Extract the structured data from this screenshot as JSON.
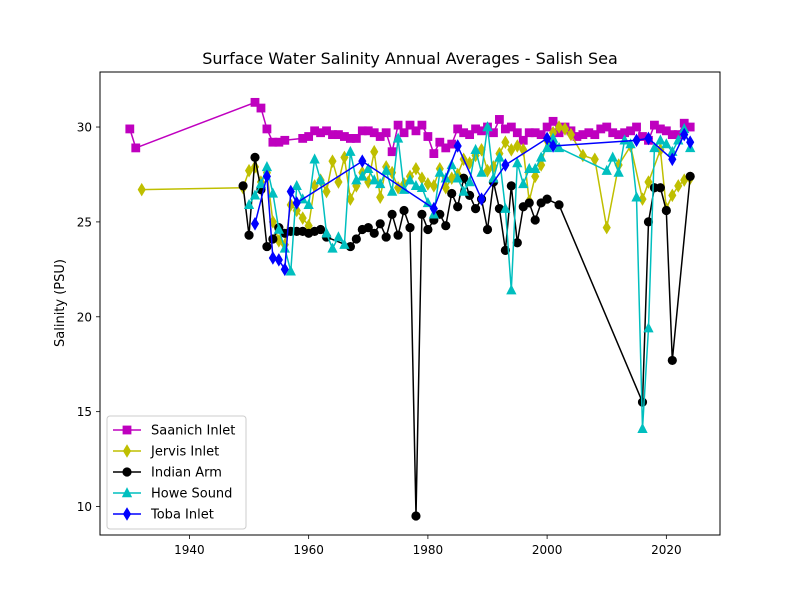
{
  "chart_data": {
    "type": "line",
    "title": "Surface Water Salinity Annual Averages - Salish Sea",
    "xlabel": "",
    "ylabel": "Salinity (PSU)",
    "xlim": [
      1925,
      2029
    ],
    "ylim": [
      8.5,
      32.9
    ],
    "xticks": [
      1940,
      1960,
      1980,
      2000,
      2020
    ],
    "yticks": [
      10,
      15,
      20,
      25,
      30
    ],
    "grid": false,
    "legend_position": "lower-left",
    "series": [
      {
        "name": "Saanich Inlet",
        "color": "#bf00bf",
        "marker": "square",
        "x": [
          1930,
          1931,
          1951,
          1952,
          1953,
          1954,
          1955,
          1956,
          1959,
          1960,
          1961,
          1962,
          1963,
          1964,
          1965,
          1966,
          1967,
          1968,
          1969,
          1970,
          1971,
          1972,
          1973,
          1974,
          1975,
          1976,
          1977,
          1978,
          1979,
          1980,
          1981,
          1982,
          1983,
          1984,
          1985,
          1986,
          1987,
          1988,
          1989,
          1990,
          1991,
          1992,
          1993,
          1994,
          1995,
          1996,
          1997,
          1998,
          1999,
          2000,
          2001,
          2002,
          2003,
          2004,
          2005,
          2006,
          2007,
          2008,
          2009,
          2010,
          2011,
          2012,
          2013,
          2014,
          2015,
          2016,
          2017,
          2018,
          2019,
          2020,
          2021,
          2022,
          2023,
          2024
        ],
        "y": [
          29.9,
          28.9,
          31.3,
          31.0,
          29.9,
          29.2,
          29.2,
          29.3,
          29.4,
          29.5,
          29.8,
          29.7,
          29.8,
          29.6,
          29.6,
          29.5,
          29.4,
          29.4,
          29.8,
          29.8,
          29.7,
          29.5,
          29.7,
          28.7,
          30.1,
          29.7,
          30.1,
          29.8,
          30.1,
          29.5,
          28.6,
          29.2,
          28.9,
          29.1,
          29.9,
          29.7,
          29.6,
          29.9,
          29.8,
          30.0,
          29.7,
          30.4,
          29.9,
          30.0,
          29.7,
          29.3,
          29.7,
          29.7,
          29.6,
          30.0,
          30.3,
          29.7,
          30.0,
          29.8,
          29.5,
          29.6,
          29.7,
          29.6,
          29.9,
          30.0,
          29.7,
          29.6,
          29.7,
          29.8,
          30.0,
          29.5,
          29.3,
          30.1,
          29.9,
          29.8,
          29.6,
          29.6,
          30.2,
          30.0
        ]
      },
      {
        "name": "Jervis Inlet",
        "color": "#bfbf00",
        "marker": "diamond",
        "x": [
          1932,
          1949,
          1950,
          1951,
          1952,
          1953,
          1954,
          1955,
          1956,
          1957,
          1958,
          1959,
          1960,
          1961,
          1962,
          1963,
          1964,
          1965,
          1966,
          1967,
          1968,
          1969,
          1970,
          1971,
          1972,
          1973,
          1974,
          1975,
          1976,
          1977,
          1978,
          1979,
          1980,
          1981,
          1982,
          1983,
          1984,
          1985,
          1986,
          1987,
          1988,
          1989,
          1990,
          1991,
          1992,
          1993,
          1994,
          1995,
          1996,
          1997,
          1998,
          1999,
          2000,
          2001,
          2002,
          2003,
          2004,
          2006,
          2008,
          2010,
          2012,
          2014,
          2016,
          2017,
          2019,
          2020,
          2021,
          2022,
          2023,
          2024
        ],
        "y": [
          26.7,
          26.8,
          27.7,
          27.9,
          27.1,
          27.6,
          25.0,
          24.0,
          23.8,
          25.9,
          25.6,
          25.2,
          24.8,
          26.9,
          27.2,
          26.6,
          28.2,
          27.1,
          28.4,
          26.2,
          26.9,
          27.6,
          27.1,
          28.7,
          26.3,
          27.9,
          27.6,
          26.8,
          27.0,
          27.4,
          27.8,
          27.3,
          27.0,
          26.9,
          27.8,
          26.8,
          27.3,
          27.5,
          28.3,
          28.1,
          28.5,
          28.8,
          27.7,
          27.9,
          28.6,
          29.2,
          28.8,
          29.0,
          28.8,
          26.1,
          27.4,
          28.0,
          29.3,
          29.7,
          30.0,
          29.9,
          29.6,
          28.5,
          28.3,
          24.7,
          28.0,
          29.0,
          26.2,
          27.1,
          28.8,
          25.7,
          26.4,
          26.9,
          27.2,
          27.3
        ]
      },
      {
        "name": "Indian Arm",
        "color": "#000000",
        "marker": "circle",
        "x": [
          1949,
          1950,
          1951,
          1952,
          1953,
          1954,
          1955,
          1956,
          1957,
          1958,
          1959,
          1960,
          1961,
          1962,
          1963,
          1967,
          1968,
          1969,
          1970,
          1971,
          1972,
          1973,
          1974,
          1975,
          1976,
          1977,
          1978,
          1979,
          1980,
          1981,
          1982,
          1983,
          1984,
          1985,
          1986,
          1987,
          1988,
          1989,
          1990,
          1991,
          1992,
          1993,
          1994,
          1995,
          1996,
          1997,
          1998,
          1999,
          2000,
          2002,
          2016,
          2017,
          2018,
          2019,
          2020,
          2021,
          2024
        ],
        "y": [
          26.9,
          24.3,
          28.4,
          26.7,
          23.7,
          24.1,
          24.7,
          24.4,
          24.5,
          24.5,
          24.5,
          24.4,
          24.5,
          24.6,
          24.2,
          23.7,
          24.1,
          24.6,
          24.7,
          24.4,
          24.9,
          24.2,
          25.4,
          24.3,
          25.6,
          24.7,
          9.5,
          25.4,
          24.6,
          25.1,
          25.4,
          24.8,
          26.5,
          25.8,
          27.3,
          26.4,
          25.7,
          26.2,
          24.6,
          27.1,
          25.7,
          23.5,
          26.9,
          23.9,
          25.8,
          26.0,
          25.1,
          26.0,
          26.2,
          25.9,
          15.5,
          25.0,
          26.8,
          26.8,
          25.6,
          17.7,
          27.4
        ]
      },
      {
        "name": "Howe Sound",
        "color": "#00bfbf",
        "marker": "triangle",
        "x": [
          1950,
          1951,
          1952,
          1953,
          1954,
          1955,
          1956,
          1957,
          1958,
          1959,
          1960,
          1961,
          1962,
          1963,
          1964,
          1965,
          1966,
          1967,
          1968,
          1969,
          1970,
          1971,
          1972,
          1973,
          1974,
          1975,
          1976,
          1977,
          1978,
          1979,
          1980,
          1981,
          1982,
          1983,
          1984,
          1985,
          1986,
          1987,
          1988,
          1989,
          1990,
          1991,
          1992,
          1993,
          1994,
          1995,
          1996,
          1997,
          1998,
          1999,
          2000,
          2001,
          2002,
          2010,
          2011,
          2012,
          2013,
          2014,
          2015,
          2016,
          2017,
          2018,
          2019,
          2020,
          2021,
          2022,
          2023,
          2024
        ],
        "y": [
          25.9,
          26.4,
          27.0,
          27.9,
          26.5,
          24.6,
          23.6,
          22.4,
          26.9,
          26.2,
          25.9,
          28.3,
          27.2,
          24.4,
          23.6,
          24.2,
          23.8,
          28.7,
          27.2,
          27.4,
          27.8,
          27.2,
          27.0,
          27.7,
          26.6,
          29.4,
          26.7,
          27.2,
          26.9,
          26.8,
          26.0,
          25.4,
          27.6,
          27.3,
          28.0,
          27.3,
          26.6,
          27.1,
          28.8,
          27.6,
          30.0,
          27.3,
          28.4,
          25.7,
          21.4,
          28.1,
          27.0,
          27.8,
          27.8,
          28.4,
          28.9,
          29.4,
          28.9,
          27.7,
          28.4,
          27.6,
          29.3,
          29.1,
          26.3,
          14.1,
          19.4,
          28.9,
          29.3,
          29.1,
          28.7,
          29.3,
          29.9,
          28.9
        ]
      },
      {
        "name": "Toba Inlet",
        "color": "#0000ff",
        "marker": "diamond",
        "x": [
          1951,
          1953,
          1954,
          1955,
          1956,
          1957,
          1958,
          1969,
          1981,
          1985,
          1989,
          1993,
          2000,
          2001,
          2015,
          2017,
          2021,
          2023,
          2024
        ],
        "y": [
          24.9,
          27.4,
          23.1,
          23.0,
          22.5,
          26.6,
          26.0,
          28.2,
          25.7,
          29.0,
          26.2,
          28.0,
          29.4,
          29.0,
          29.3,
          29.4,
          28.3,
          29.6,
          29.2
        ]
      }
    ]
  }
}
